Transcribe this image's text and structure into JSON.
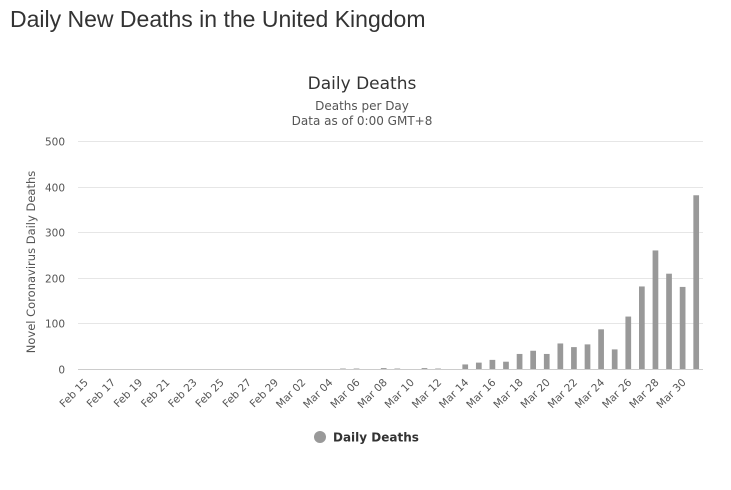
{
  "page": {
    "title": "Daily New Deaths in the United Kingdom"
  },
  "chart_data": {
    "type": "bar",
    "title": "Daily Deaths",
    "subtitle": [
      "Deaths per Day",
      "Data as of 0:00 GMT+8"
    ],
    "xlabel": "",
    "ylabel": "Novel Coronavirus Daily Deaths",
    "ylim": [
      0,
      500
    ],
    "yticks": [
      0,
      100,
      200,
      300,
      400,
      500
    ],
    "grid": true,
    "legend_position": "bottom-center",
    "categories": [
      "Feb 15",
      "Feb 16",
      "Feb 17",
      "Feb 18",
      "Feb 19",
      "Feb 20",
      "Feb 21",
      "Feb 22",
      "Feb 23",
      "Feb 24",
      "Feb 25",
      "Feb 26",
      "Feb 27",
      "Feb 28",
      "Feb 29",
      "Mar 01",
      "Mar 02",
      "Mar 03",
      "Mar 04",
      "Mar 05",
      "Mar 06",
      "Mar 07",
      "Mar 08",
      "Mar 09",
      "Mar 10",
      "Mar 11",
      "Mar 12",
      "Mar 13",
      "Mar 14",
      "Mar 15",
      "Mar 16",
      "Mar 17",
      "Mar 18",
      "Mar 19",
      "Mar 20",
      "Mar 21",
      "Mar 22",
      "Mar 23",
      "Mar 24",
      "Mar 25",
      "Mar 26",
      "Mar 27",
      "Mar 28",
      "Mar 29",
      "Mar 30",
      "Mar 31"
    ],
    "xtick_labels": [
      "Feb 15",
      "Feb 17",
      "Feb 19",
      "Feb 21",
      "Feb 23",
      "Feb 25",
      "Feb 27",
      "Feb 29",
      "Mar 02",
      "Mar 04",
      "Mar 06",
      "Mar 08",
      "Mar 10",
      "Mar 12",
      "Mar 14",
      "Mar 16",
      "Mar 18",
      "Mar 20",
      "Mar 22",
      "Mar 24",
      "Mar 26",
      "Mar 28",
      "Mar 30"
    ],
    "series": [
      {
        "name": "Daily Deaths",
        "color": "#999999",
        "values": [
          0,
          0,
          0,
          0,
          0,
          0,
          0,
          0,
          0,
          0,
          0,
          0,
          0,
          0,
          0,
          0,
          0,
          0,
          0,
          1,
          1,
          0,
          2,
          1,
          0,
          2,
          1,
          0,
          10,
          14,
          20,
          16,
          33,
          40,
          33,
          56,
          48,
          54,
          87,
          43,
          115,
          181,
          260,
          209,
          180,
          381
        ]
      }
    ]
  }
}
